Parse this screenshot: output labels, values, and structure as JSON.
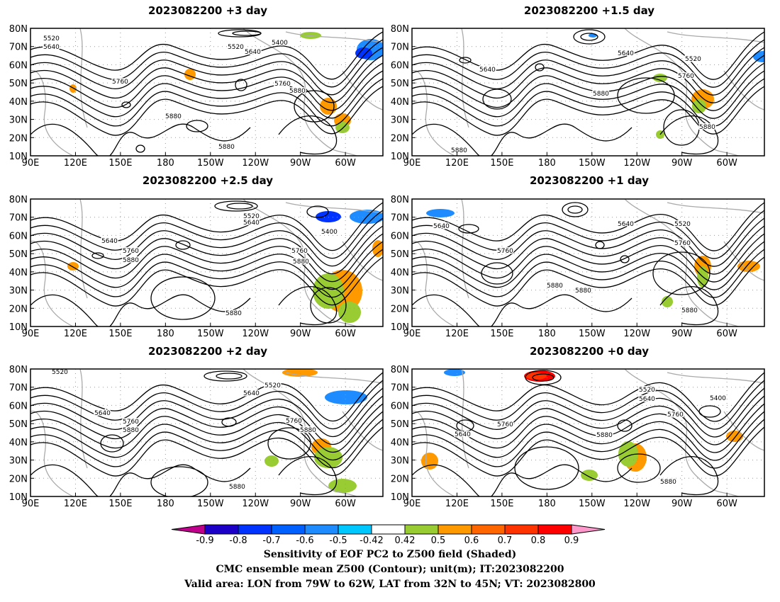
{
  "panels": [
    {
      "title": "2023082200  +3 day",
      "contour_labels": [
        "5520",
        "5640",
        "5520",
        "5640",
        "5400",
        "5760",
        "5760",
        "5880",
        "5880",
        "5880"
      ]
    },
    {
      "title": "2023082200  +1.5 day",
      "contour_labels": [
        "5640",
        "5640",
        "5520",
        "5760",
        "5880",
        "5880",
        "5880"
      ]
    },
    {
      "title": "2023082200  +2.5 day",
      "contour_labels": [
        "5520",
        "5640",
        "5640",
        "5760",
        "5880",
        "5400",
        "5760",
        "5880",
        "5880"
      ]
    },
    {
      "title": "2023082200  +1 day",
      "contour_labels": [
        "5640",
        "5640",
        "5520",
        "5760",
        "5760",
        "5880",
        "5880",
        "5880"
      ]
    },
    {
      "title": "2023082200  +2 day",
      "contour_labels": [
        "5520",
        "5520",
        "5640",
        "5640",
        "5760",
        "5880",
        "5760",
        "5880",
        "5880"
      ]
    },
    {
      "title": "2023082200  +0 day",
      "contour_labels": [
        "5520",
        "5640",
        "5400",
        "5760",
        "5760",
        "5640",
        "5880",
        "5880"
      ]
    }
  ],
  "axes": {
    "lat_ticks": [
      "80N",
      "70N",
      "60N",
      "50N",
      "40N",
      "30N",
      "20N",
      "10N"
    ],
    "lon_ticks": [
      "90E",
      "120E",
      "150E",
      "180",
      "150W",
      "120W",
      "90W",
      "60W"
    ]
  },
  "colorbar": {
    "labels": [
      "-0.9",
      "-0.8",
      "-0.7",
      "-0.6",
      "-0.5",
      "-0.42",
      "0.42",
      "0.5",
      "0.6",
      "0.7",
      "0.8",
      "0.9"
    ],
    "colors": [
      "#1c00c8",
      "#0033ff",
      "#0060ff",
      "#1e8cff",
      "#00c8ff",
      "#ffffff",
      "#99cc33",
      "#ff9900",
      "#ff6600",
      "#ff3300",
      "#ff0000"
    ],
    "under_color": "#c0008c",
    "over_color": "#ff99cc"
  },
  "footer": {
    "line1": "Sensitivity of EOF PC2 to Z500 field (Shaded)",
    "line2": "CMC ensemble mean Z500 (Contour); unit(m); IT:2023082200",
    "line3": "Valid area: LON from 79W to 62W, LAT from 32N to 45N; VT: 2023082800"
  }
}
